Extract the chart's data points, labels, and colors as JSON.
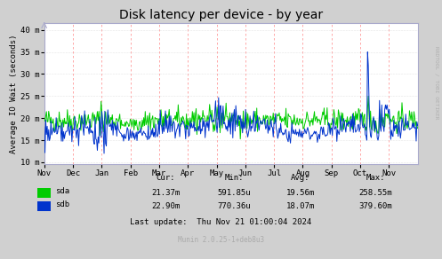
{
  "title": "Disk latency per device - by year",
  "ylabel": "Average IO Wait (seconds)",
  "bg_color": "#d0d0d0",
  "plot_bg_color": "#ffffff",
  "grid_v_color": "#ff9999",
  "grid_h_color": "#cccccc",
  "sda_color": "#00cc00",
  "sdb_color": "#0033cc",
  "ytick_labels": [
    "10 m",
    "15 m",
    "20 m",
    "25 m",
    "30 m",
    "35 m",
    "40 m"
  ],
  "ytick_values": [
    10,
    15,
    20,
    25,
    30,
    35,
    40
  ],
  "ylim": [
    9.5,
    41.5
  ],
  "x_labels": [
    "Nov",
    "Dec",
    "Jan",
    "Feb",
    "Mar",
    "Apr",
    "May",
    "Jun",
    "Jul",
    "Aug",
    "Sep",
    "Oct",
    "Nov"
  ],
  "cur_sda": "21.37m",
  "cur_sdb": "22.90m",
  "min_sda": "591.85u",
  "min_sdb": "770.36u",
  "avg_sda": "19.56m",
  "avg_sdb": "18.07m",
  "max_sda": "258.55m",
  "max_sdb": "379.60m",
  "last_update": "Last update:  Thu Nov 21 01:00:04 2024",
  "munin_version": "Munin 2.0.25-1+deb8u3",
  "rrdtool_text": "RRDTOOL / TOBI OETIKER",
  "title_fontsize": 10,
  "axis_fontsize": 6.5,
  "legend_fontsize": 6.5,
  "footer_fontsize": 5.5
}
